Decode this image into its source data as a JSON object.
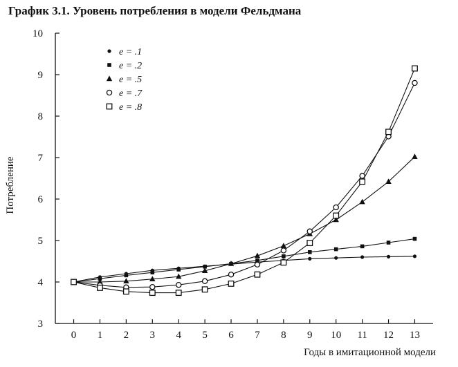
{
  "chart_data": {
    "type": "line",
    "title": "График 3.1. Уровень потребления в модели Фельдмана",
    "xlabel": "Годы в имитационной модели",
    "ylabel": "Потребление",
    "x": [
      0,
      1,
      2,
      3,
      4,
      5,
      6,
      7,
      8,
      9,
      10,
      11,
      12,
      13
    ],
    "xlim": [
      -0.7,
      13.7
    ],
    "ylim": [
      3,
      10
    ],
    "x_ticks": [
      "0",
      "1",
      "2",
      "3",
      "4",
      "5",
      "6",
      "7",
      "8",
      "9",
      "10",
      "11",
      "12",
      "13"
    ],
    "y_ticks": [
      "3",
      "4",
      "5",
      "6",
      "7",
      "8",
      "9",
      "10"
    ],
    "grid": false,
    "legend_position": "top-left",
    "series": [
      {
        "name": "e = .1",
        "marker": "filled-circle-small",
        "values": [
          4.0,
          4.12,
          4.2,
          4.28,
          4.33,
          4.38,
          4.43,
          4.48,
          4.52,
          4.56,
          4.58,
          4.6,
          4.61,
          4.62
        ]
      },
      {
        "name": "e = .2",
        "marker": "filled-square-small",
        "values": [
          4.0,
          4.08,
          4.16,
          4.23,
          4.3,
          4.37,
          4.44,
          4.52,
          4.62,
          4.72,
          4.79,
          4.86,
          4.95,
          5.04
        ]
      },
      {
        "name": "e = .5",
        "marker": "filled-triangle",
        "values": [
          4.0,
          4.0,
          4.02,
          4.07,
          4.13,
          4.27,
          4.44,
          4.63,
          4.87,
          5.16,
          5.5,
          5.93,
          6.42,
          7.02
        ]
      },
      {
        "name": "e = .7",
        "marker": "open-circle",
        "values": [
          4.0,
          3.92,
          3.87,
          3.88,
          3.93,
          4.02,
          4.18,
          4.42,
          4.76,
          5.22,
          5.8,
          6.56,
          7.51,
          8.8
        ]
      },
      {
        "name": "e = .8",
        "marker": "open-square",
        "values": [
          4.0,
          3.86,
          3.77,
          3.74,
          3.74,
          3.82,
          3.96,
          4.18,
          4.47,
          4.94,
          5.6,
          6.42,
          7.62,
          9.15
        ]
      }
    ]
  }
}
